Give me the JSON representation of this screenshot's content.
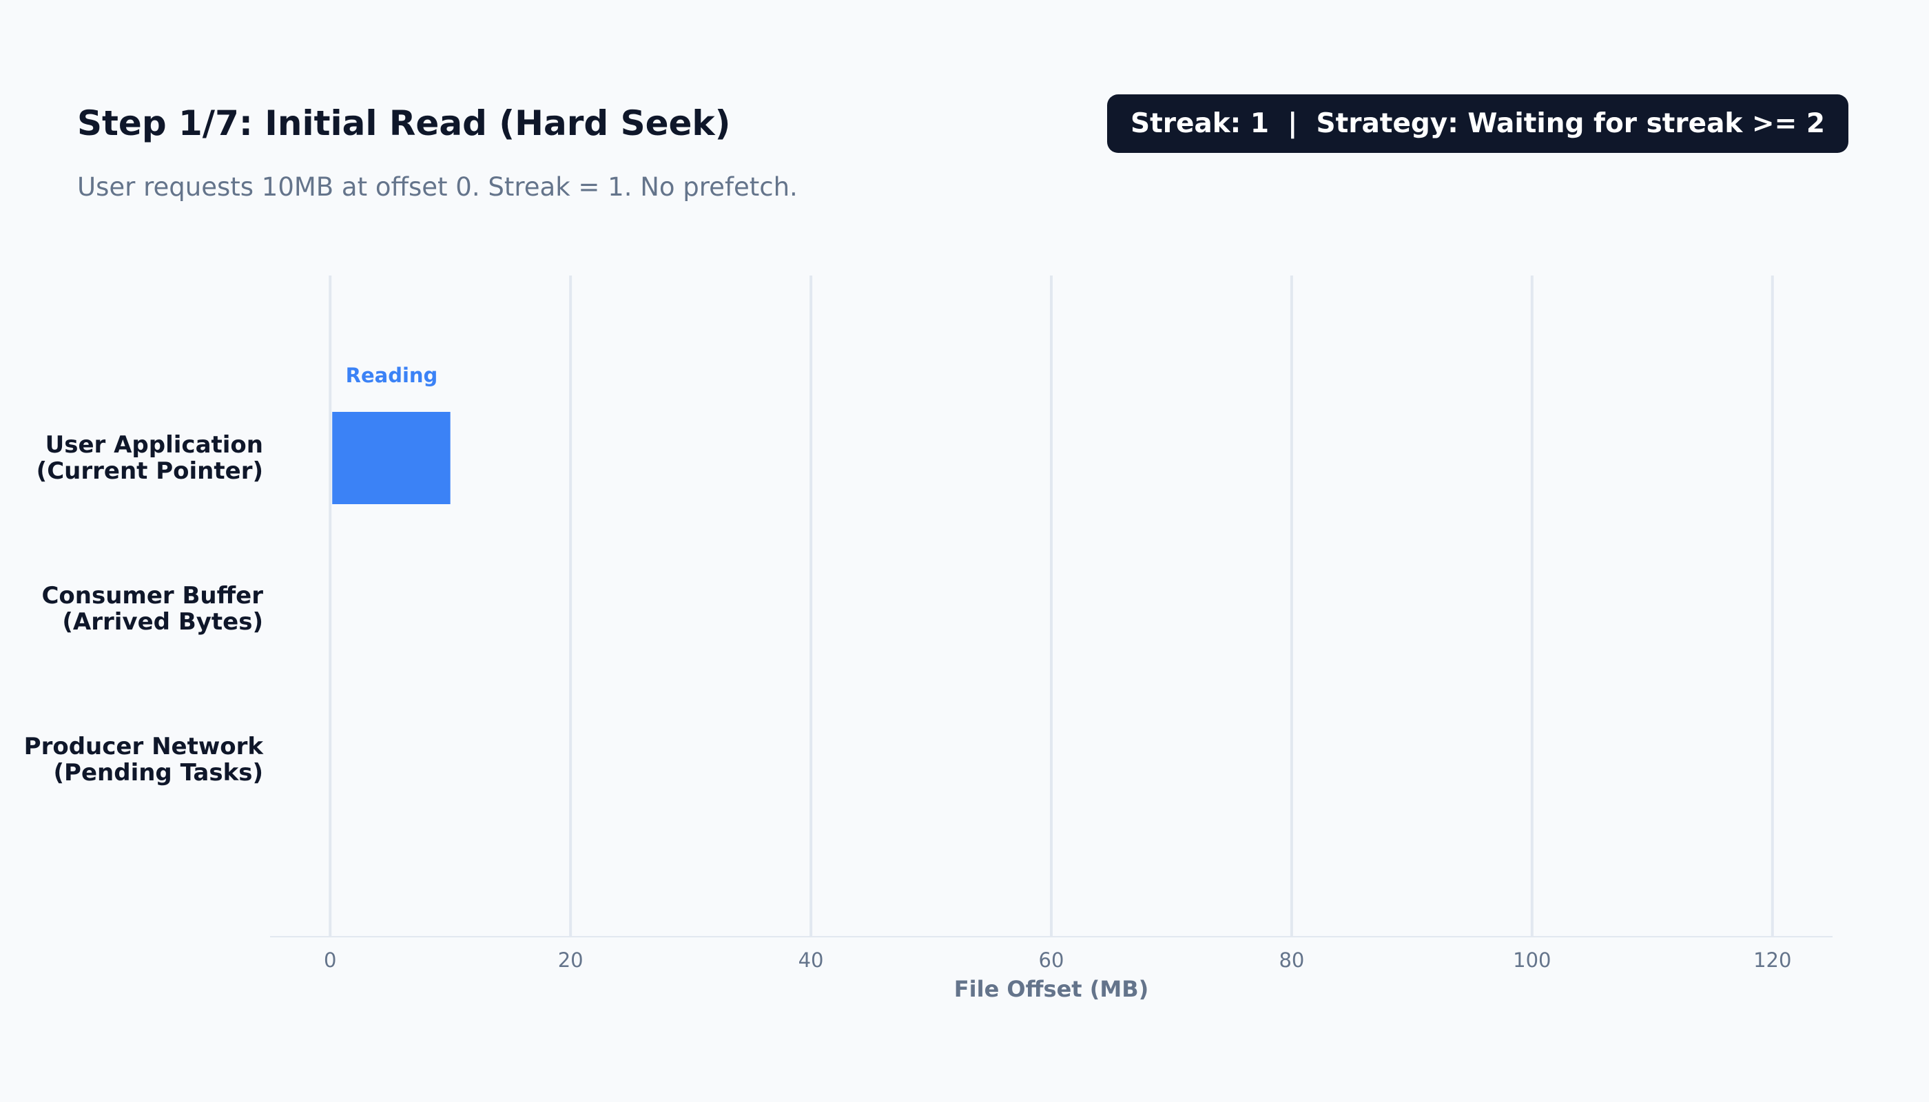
{
  "header": {
    "title": "Step 1/7: Initial Read (Hard Seek)",
    "subtitle": "User requests 10MB at offset 0. Streak = 1. No prefetch.",
    "status": "Streak: 1  |  Strategy: Waiting for streak >= 2"
  },
  "chart_data": {
    "type": "bar",
    "orientation": "horizontal",
    "categories": [
      [
        "User Application",
        "(Current Pointer)"
      ],
      [
        "Consumer Buffer",
        "(Arrived Bytes)"
      ],
      [
        "Producer Network",
        "(Pending Tasks)"
      ]
    ],
    "bars": [
      {
        "row": 0,
        "start": 0,
        "end": 10,
        "label": "Reading",
        "color": "#3b82f6"
      }
    ],
    "xlabel": "File Offset (MB)",
    "ylabel": "",
    "xlim": [
      -5,
      125
    ],
    "xticks": [
      0,
      20,
      40,
      60,
      80,
      100,
      120
    ],
    "grid": true
  }
}
